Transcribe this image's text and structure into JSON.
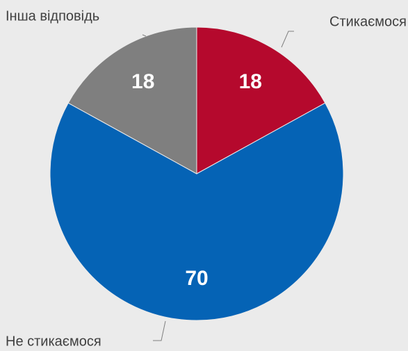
{
  "chart_data": {
    "type": "pie",
    "categories": [
      "Стикаємося",
      "Не стикаємося",
      "Інша відповідь"
    ],
    "values": [
      18,
      70,
      18
    ],
    "colors": [
      "#b5092d",
      "#0563b5",
      "#7f7f7f"
    ]
  }
}
